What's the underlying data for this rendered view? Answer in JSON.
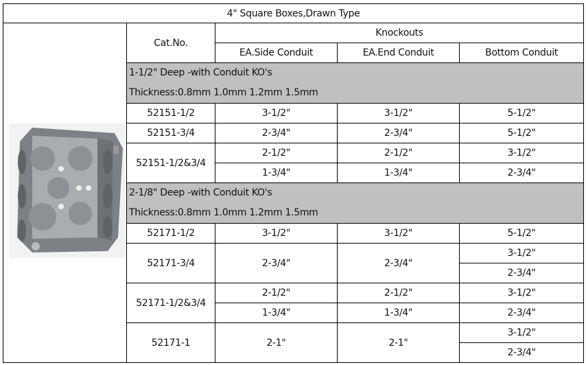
{
  "title": "4\" Square Boxes,Drawn Type",
  "header": {
    "cat_no": "Cat.No.",
    "knockouts": "Knockouts",
    "side": "EA.Side Conduit",
    "end": "EA.End Conduit",
    "bottom": "Bottom Conduit"
  },
  "image": {
    "alt": "4 inch square drawn electrical box",
    "color": "#8e9296"
  },
  "sections": [
    {
      "title": "1-1/2\" Deep -with Conduit KO's",
      "thickness": "Thickness:0.8mm 1.0mm 1.2mm 1.5mm",
      "rows": [
        {
          "cat": "52151-1/2",
          "side": "3-1/2\"",
          "end": "3-1/2\"",
          "bottom": "5-1/2\""
        },
        {
          "cat": "52151-3/4",
          "side": "2-3/4\"",
          "end": "2-3/4\"",
          "bottom": "5-1/2\""
        },
        {
          "cat": "52151-1/2&3/4",
          "side": [
            "2-1/2\"",
            "1-3/4\""
          ],
          "end": [
            "2-1/2\"",
            "1-3/4\""
          ],
          "bottom": [
            "3-1/2\"",
            "2-3/4\""
          ]
        }
      ]
    },
    {
      "title": "2-1/8\" Deep -with Conduit KO's",
      "thickness": "Thickness:0.8mm 1.0mm 1.2mm 1.5mm",
      "rows": [
        {
          "cat": "52171-1/2",
          "side": "3-1/2\"",
          "end": "3-1/2\"",
          "bottom": "5-1/2\""
        },
        {
          "cat": "52171-3/4",
          "side": "2-3/4\"",
          "end": "2-3/4\"",
          "bottom": [
            "3-1/2\"",
            "2-3/4\""
          ]
        },
        {
          "cat": "52171-1/2&3/4",
          "side": [
            "2-1/2\"",
            "1-3/4\""
          ],
          "end": [
            "2-1/2\"",
            "1-3/4\""
          ],
          "bottom": [
            "3-1/2\"",
            "2-3/4\""
          ]
        },
        {
          "cat": "52171-1",
          "side": "2-1\"",
          "end": "2-1\"",
          "bottom": [
            "3-1/2\"",
            "2-3/4\""
          ]
        }
      ]
    }
  ]
}
